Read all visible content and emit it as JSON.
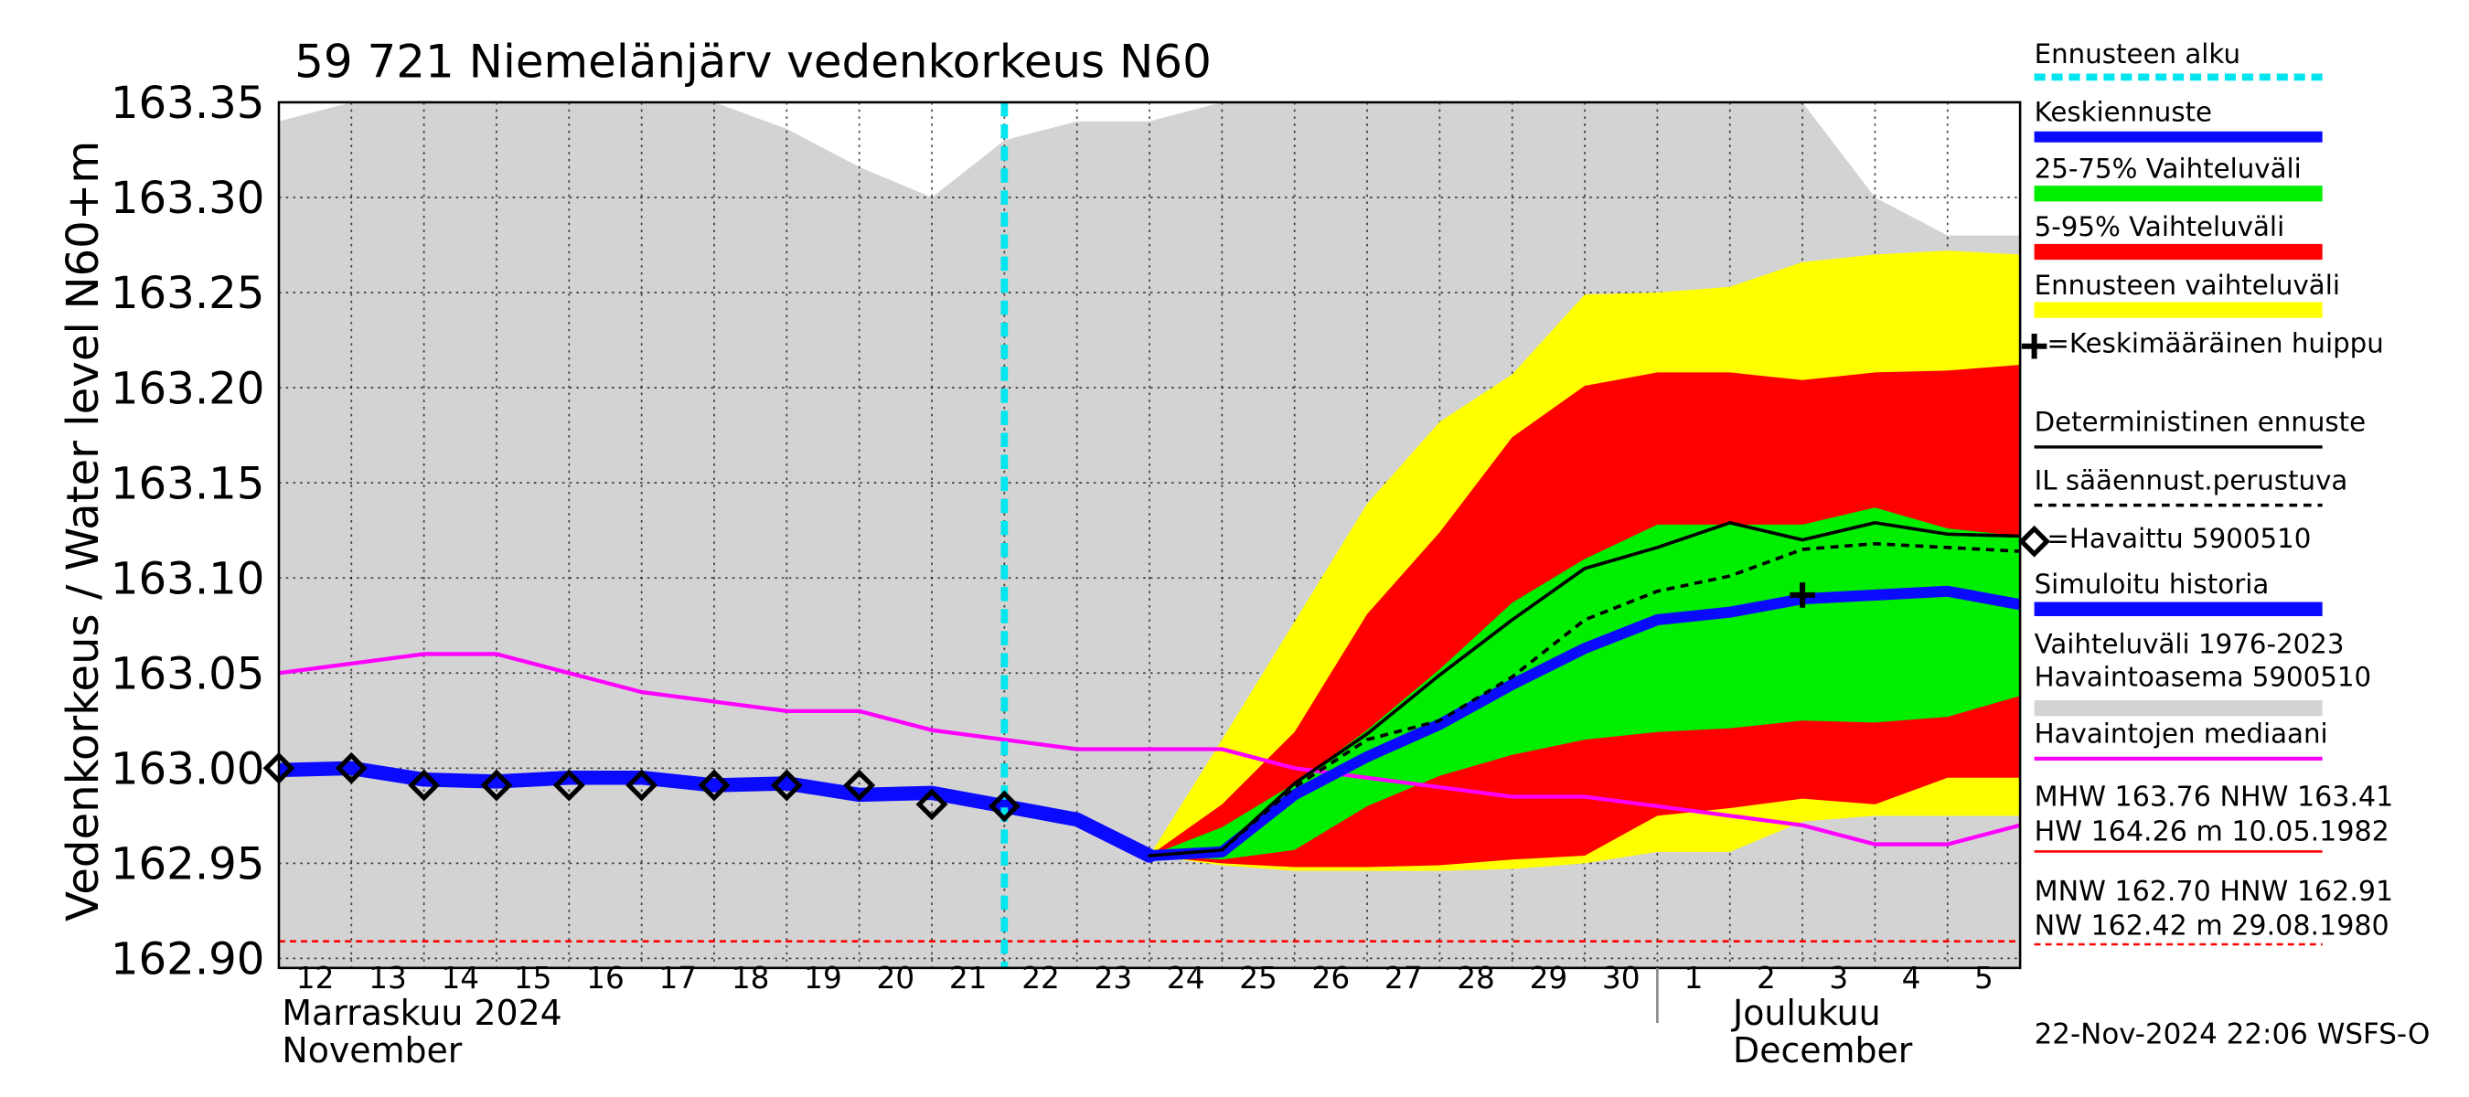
{
  "chart_data": {
    "type": "hydrograph",
    "title": "59 721 Niemelänjärv vedenkorkeus N60",
    "y_label": "Vedenkorkeus / Water level",
    "y_unit_label": "N60+m",
    "x": [
      "2024-11-12",
      "2024-11-13",
      "2024-11-14",
      "2024-11-15",
      "2024-11-16",
      "2024-11-17",
      "2024-11-18",
      "2024-11-19",
      "2024-11-20",
      "2024-11-21",
      "2024-11-22",
      "2024-11-23",
      "2024-11-24",
      "2024-11-25",
      "2024-11-26",
      "2024-11-27",
      "2024-11-28",
      "2024-11-29",
      "2024-11-30",
      "2024-12-01",
      "2024-12-02",
      "2024-12-03",
      "2024-12-04",
      "2024-12-05",
      "2024-12-06"
    ],
    "xlim": [
      "2024-11-12",
      "2024-12-06"
    ],
    "xticks": [
      {
        "value": "2024-11-12",
        "label": "12"
      },
      {
        "value": "2024-11-13",
        "label": "13"
      },
      {
        "value": "2024-11-14",
        "label": "14"
      },
      {
        "value": "2024-11-15",
        "label": "15"
      },
      {
        "value": "2024-11-16",
        "label": "16"
      },
      {
        "value": "2024-11-17",
        "label": "17"
      },
      {
        "value": "2024-11-18",
        "label": "18"
      },
      {
        "value": "2024-11-19",
        "label": "19"
      },
      {
        "value": "2024-11-20",
        "label": "20"
      },
      {
        "value": "2024-11-21",
        "label": "21"
      },
      {
        "value": "2024-11-22",
        "label": "22"
      },
      {
        "value": "2024-11-23",
        "label": "23"
      },
      {
        "value": "2024-11-24",
        "label": "24"
      },
      {
        "value": "2024-11-25",
        "label": "25"
      },
      {
        "value": "2024-11-26",
        "label": "26"
      },
      {
        "value": "2024-11-27",
        "label": "27"
      },
      {
        "value": "2024-11-28",
        "label": "28"
      },
      {
        "value": "2024-11-29",
        "label": "29"
      },
      {
        "value": "2024-11-30",
        "label": "30"
      },
      {
        "value": "2024-12-01",
        "label": "1"
      },
      {
        "value": "2024-12-02",
        "label": "2"
      },
      {
        "value": "2024-12-03",
        "label": "3"
      },
      {
        "value": "2024-12-04",
        "label": "4"
      },
      {
        "value": "2024-12-05",
        "label": "5"
      }
    ],
    "month_labels": [
      [
        "Marraskuu 2024",
        "November"
      ],
      [
        "Joulukuu",
        "December"
      ]
    ],
    "ylim": [
      162.895,
      163.35
    ],
    "yticks": [
      {
        "value": 162.9,
        "label": "162.90"
      },
      162.95,
      {
        "value": 163.0,
        "label": "163.00"
      },
      163.05,
      {
        "value": 163.1,
        "label": "163.10"
      },
      163.15,
      {
        "value": 163.2,
        "label": "163.20"
      },
      163.25,
      {
        "value": 163.3,
        "label": "163.30"
      },
      163.35
    ],
    "grid": true,
    "vlines": [
      {
        "name": "Ennusteen alku",
        "x": "2024-11-22",
        "color": "#00e5ee"
      }
    ],
    "hlines": [
      {
        "value": 162.909,
        "color": "#ff0000"
      }
    ],
    "series": [
      {
        "name": "Keskiennuste",
        "kind": "line",
        "color": "#0a0aff",
        "width": 7,
        "values": [
          null,
          null,
          null,
          null,
          null,
          null,
          null,
          null,
          null,
          null,
          null,
          null,
          162.954,
          162.956,
          162.986,
          163.006,
          163.023,
          163.044,
          163.063,
          163.078,
          163.082,
          163.089,
          163.091,
          163.093,
          163.086
        ]
      },
      {
        "name": "25-75% Vaihteluväli",
        "kind": "band",
        "color": "#00ee00",
        "values": [
          null,
          null,
          null,
          null,
          null,
          null,
          null,
          null,
          null,
          null,
          null,
          null,
          162.954,
          162.969,
          162.992,
          163.02,
          163.052,
          163.087,
          163.11,
          163.128,
          163.128,
          163.128,
          163.137,
          163.126,
          163.122
        ],
        "lower": [
          null,
          null,
          null,
          null,
          null,
          null,
          null,
          null,
          null,
          null,
          null,
          null,
          162.954,
          162.952,
          162.957,
          162.98,
          162.996,
          163.007,
          163.015,
          163.019,
          163.021,
          163.025,
          163.024,
          163.027,
          163.038
        ]
      },
      {
        "name": "5-95% Vaihteluväli",
        "kind": "band",
        "color": "#ff0000",
        "values": [
          null,
          null,
          null,
          null,
          null,
          null,
          null,
          null,
          null,
          null,
          null,
          null,
          162.954,
          162.981,
          163.019,
          163.081,
          163.124,
          163.174,
          163.201,
          163.208,
          163.208,
          163.204,
          163.208,
          163.209,
          163.212
        ],
        "lower": [
          null,
          null,
          null,
          null,
          null,
          null,
          null,
          null,
          null,
          null,
          null,
          null,
          162.954,
          162.95,
          162.948,
          162.948,
          162.949,
          162.952,
          162.954,
          162.975,
          162.979,
          162.984,
          162.981,
          162.995,
          162.995
        ]
      },
      {
        "name": "Ennusteen vaihteluväli",
        "kind": "band",
        "color": "#ffff00",
        "values": [
          null,
          null,
          null,
          null,
          null,
          null,
          null,
          null,
          null,
          null,
          null,
          null,
          162.954,
          163.015,
          163.077,
          163.139,
          163.182,
          163.207,
          163.249,
          163.25,
          163.253,
          163.266,
          163.27,
          163.272,
          163.27
        ],
        "lower": [
          null,
          null,
          null,
          null,
          null,
          null,
          null,
          null,
          null,
          null,
          null,
          null,
          162.954,
          162.949,
          162.946,
          162.946,
          162.946,
          162.947,
          162.95,
          162.956,
          162.956,
          162.972,
          162.975,
          162.975,
          162.975
        ]
      },
      {
        "name": "=Keskimääräinen huippu",
        "kind": "marker",
        "marker": "plus",
        "color": "#000000",
        "values": [
          null,
          null,
          null,
          null,
          null,
          null,
          null,
          null,
          null,
          null,
          null,
          null,
          null,
          null,
          null,
          null,
          null,
          null,
          null,
          null,
          null,
          163.091,
          null,
          null,
          null
        ]
      },
      {
        "name": "Deterministinen ennuste",
        "kind": "line",
        "color": "#000000",
        "width": 2,
        "values": [
          null,
          null,
          null,
          null,
          null,
          null,
          null,
          null,
          null,
          null,
          null,
          null,
          162.954,
          162.957,
          162.992,
          163.018,
          163.049,
          163.078,
          163.105,
          163.116,
          163.129,
          163.12,
          163.129,
          163.123,
          163.122
        ]
      },
      {
        "name": "IL sääennust.perustuva",
        "kind": "line",
        "color": "#000000",
        "width": 2,
        "dashed": true,
        "values": [
          null,
          null,
          null,
          null,
          null,
          null,
          null,
          null,
          null,
          null,
          null,
          null,
          162.954,
          162.957,
          162.99,
          163.015,
          163.025,
          163.048,
          163.078,
          163.093,
          163.101,
          163.115,
          163.118,
          163.116,
          163.114
        ]
      },
      {
        "name": "=Havaittu 5900510",
        "kind": "marker",
        "marker": "diamond",
        "color": "#000000",
        "values": [
          163.0,
          163.0,
          162.991,
          162.991,
          162.991,
          162.991,
          162.991,
          162.991,
          162.991,
          162.981,
          162.98,
          null,
          null,
          null,
          null,
          null,
          null,
          null,
          null,
          null,
          null,
          null,
          null,
          null,
          null
        ]
      },
      {
        "name": "Simuloitu historia",
        "kind": "line",
        "color": "#0a0aff",
        "width": 9,
        "values": [
          162.999,
          163.0,
          162.994,
          162.993,
          162.995,
          162.995,
          162.991,
          162.992,
          162.986,
          162.987,
          162.98,
          162.973,
          162.954,
          null,
          null,
          null,
          null,
          null,
          null,
          null,
          null,
          null,
          null,
          null,
          null
        ]
      },
      {
        "name": "Vaihteluväli 1976-2023 Havaintoasema 5900510",
        "kind": "area",
        "color": "#d3d3d3",
        "values": [
          163.34,
          163.35,
          163.35,
          163.35,
          163.35,
          163.35,
          163.35,
          163.336,
          163.316,
          163.3,
          163.33,
          163.34,
          163.34,
          163.35,
          163.35,
          163.35,
          163.35,
          163.35,
          163.35,
          163.35,
          163.35,
          163.35,
          163.3,
          163.28,
          163.28
        ]
      },
      {
        "name": "Havaintojen mediaani",
        "kind": "line",
        "color": "#ff00ff",
        "width": 2.5,
        "values": [
          163.05,
          163.055,
          163.06,
          163.06,
          163.05,
          163.04,
          163.035,
          163.03,
          163.03,
          163.02,
          163.015,
          163.01,
          163.01,
          163.01,
          163.0,
          162.995,
          162.99,
          162.985,
          162.985,
          162.98,
          162.975,
          162.97,
          162.96,
          162.96,
          162.97
        ]
      }
    ],
    "stats": [
      "MHW 163.76 NHW 163.41",
      "HW 164.26 m 10.05.1982",
      "MNW 162.70 HNW 162.91",
      "NW 162.42 m 29.08.1980"
    ],
    "footer": "22-Nov-2024 22:06 WSFS-O"
  }
}
